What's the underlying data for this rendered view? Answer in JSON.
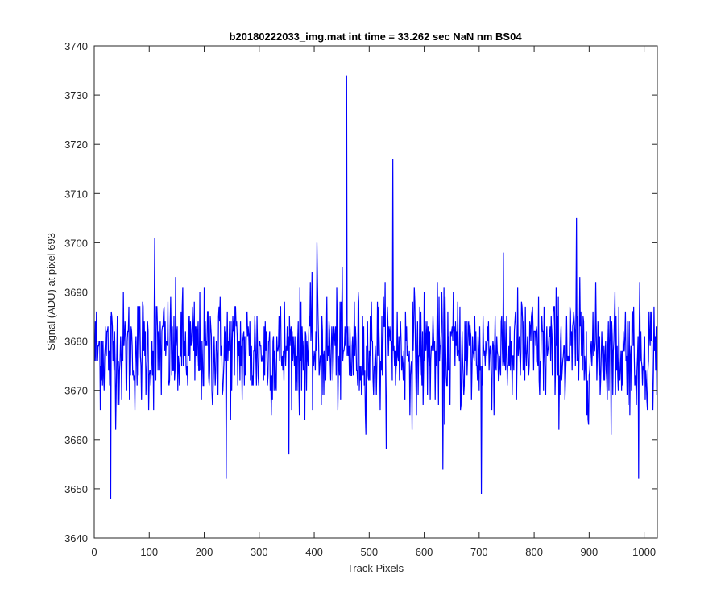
{
  "chart_data": {
    "type": "line",
    "title": "b20180222033_img.mat int time = 33.262 sec  NaN nm BS04",
    "xlabel": "Track Pixels",
    "ylabel": "Signal (ADU) at pixel 693",
    "xlim": [
      0,
      1024
    ],
    "ylim": [
      3640,
      3740
    ],
    "xticks": [
      0,
      100,
      200,
      300,
      400,
      500,
      600,
      700,
      800,
      900,
      1000
    ],
    "yticks": [
      3640,
      3650,
      3660,
      3670,
      3680,
      3690,
      3700,
      3710,
      3720,
      3730,
      3740
    ],
    "grid": false,
    "line_color": "#0000ff",
    "series": [
      {
        "x_start": 1,
        "x_step": 1,
        "n_points": 1024,
        "baseline": 3678,
        "noise_amplitude": 6,
        "notable_points": [
          {
            "x": 30,
            "y": 3648
          },
          {
            "x": 110,
            "y": 3701
          },
          {
            "x": 240,
            "y": 3652
          },
          {
            "x": 405,
            "y": 3700
          },
          {
            "x": 459,
            "y": 3734
          },
          {
            "x": 543,
            "y": 3717
          },
          {
            "x": 634,
            "y": 3654
          },
          {
            "x": 704,
            "y": 3649
          },
          {
            "x": 877,
            "y": 3705
          },
          {
            "x": 990,
            "y": 3652
          }
        ]
      }
    ]
  }
}
